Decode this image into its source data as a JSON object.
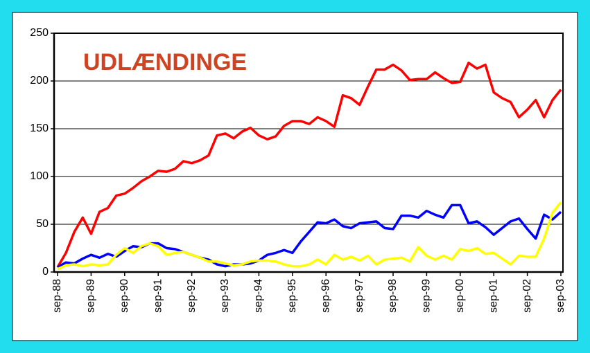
{
  "chart_data": {
    "type": "line",
    "annotation": "UDLÆNDINGE",
    "categories": [
      "sep-88",
      null,
      null,
      null,
      "sep-89",
      null,
      null,
      null,
      "sep-90",
      null,
      null,
      null,
      "sep-91",
      null,
      null,
      null,
      "sep-92",
      null,
      null,
      null,
      "sep-93",
      null,
      null,
      null,
      "sep-94",
      null,
      null,
      null,
      "sep-95",
      null,
      null,
      null,
      "sep-96",
      null,
      null,
      null,
      "sep-97",
      null,
      null,
      null,
      "sep-98",
      null,
      null,
      null,
      "sep-99",
      null,
      null,
      null,
      "sep-00",
      null,
      null,
      null,
      "sep-01",
      null,
      null,
      null,
      "sep-02",
      null,
      null,
      null,
      "sep-03"
    ],
    "series": [
      {
        "color": "#ff0000",
        "values": [
          5,
          20,
          42,
          57,
          40,
          63,
          67,
          80,
          82,
          88,
          95,
          100,
          106,
          105,
          108,
          116,
          114,
          117,
          122,
          143,
          145,
          140,
          147,
          151,
          143,
          139,
          142,
          153,
          158,
          158,
          155,
          162,
          158,
          152,
          185,
          182,
          175,
          194,
          212,
          212,
          217,
          211,
          201,
          202,
          202,
          209,
          203,
          198,
          199,
          219,
          213,
          217,
          188,
          182,
          178,
          162,
          170,
          180,
          162,
          180,
          191
        ]
      },
      {
        "color": "#0000ff",
        "values": [
          5,
          10,
          9,
          14,
          18,
          15,
          19,
          16,
          22,
          27,
          26,
          30,
          30,
          25,
          24,
          21,
          18,
          15,
          13,
          8,
          6,
          8,
          8,
          9,
          12,
          18,
          20,
          23,
          20,
          32,
          42,
          52,
          51,
          55,
          48,
          46,
          51,
          52,
          53,
          46,
          45,
          59,
          59,
          57,
          64,
          60,
          57,
          70,
          70,
          51,
          53,
          47,
          39,
          46,
          53,
          56,
          45,
          35,
          60,
          55,
          63
        ]
      },
      {
        "color": "#ffff00",
        "values": [
          3,
          7,
          8,
          6,
          8,
          7,
          8,
          18,
          25,
          20,
          27,
          30,
          27,
          18,
          20,
          21,
          18,
          15,
          11,
          11,
          9,
          7,
          8,
          11,
          12,
          12,
          11,
          8,
          6,
          6,
          8,
          13,
          8,
          18,
          13,
          16,
          12,
          17,
          8,
          13,
          14,
          15,
          11,
          26,
          17,
          13,
          17,
          13,
          24,
          22,
          25,
          19,
          20,
          14,
          8,
          17,
          16,
          16,
          35,
          62,
          73
        ]
      }
    ],
    "ylim": [
      0,
      250
    ],
    "yticks": [
      0,
      50,
      100,
      150,
      200,
      250
    ],
    "grid": true
  }
}
